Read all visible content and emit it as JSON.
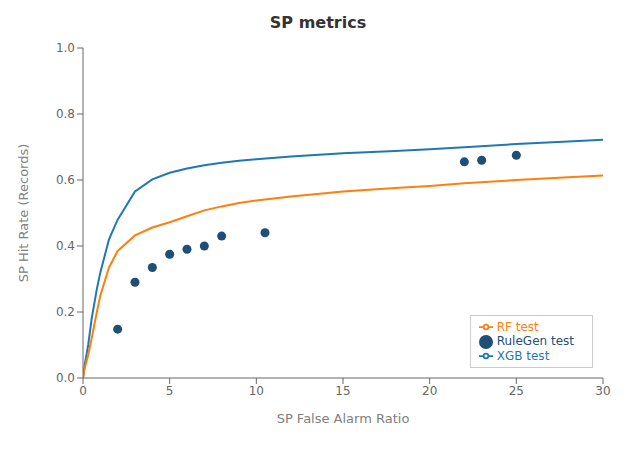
{
  "chart_data": {
    "type": "line",
    "title": "SP metrics",
    "xlabel": "SP False Alarm Ratio",
    "ylabel": "SP Hit Rate (Records)",
    "xlim": [
      0,
      30
    ],
    "ylim": [
      0.0,
      1.0
    ],
    "xticks": [
      0,
      5,
      10,
      15,
      20,
      25,
      30
    ],
    "yticks": [
      {
        "value": 0.0,
        "label": "0.0"
      },
      0.2,
      0.4,
      0.6,
      0.8,
      {
        "value": 1.0,
        "label": "1.0"
      }
    ],
    "grid": false,
    "legend": "lower right",
    "series": [
      {
        "name": "XGB test",
        "type": "line",
        "color": "#1f77b4",
        "x": [
          0,
          0.1,
          0.3,
          0.5,
          0.8,
          1.0,
          1.5,
          2.0,
          3.0,
          4.0,
          5.0,
          6.0,
          7.0,
          8.0,
          9.0,
          10.0,
          12.0,
          15.0,
          18.0,
          20.0,
          22.0,
          25.0,
          28.0,
          30.0
        ],
        "values": [
          0.0,
          0.04,
          0.1,
          0.18,
          0.27,
          0.32,
          0.42,
          0.48,
          0.565,
          0.602,
          0.622,
          0.635,
          0.645,
          0.652,
          0.658,
          0.663,
          0.671,
          0.681,
          0.688,
          0.693,
          0.699,
          0.709,
          0.717,
          0.722
        ]
      },
      {
        "name": "RF test",
        "type": "line",
        "color": "#ff7f0e",
        "x": [
          0,
          0.1,
          0.3,
          0.5,
          0.8,
          1.0,
          1.5,
          2.0,
          3.0,
          4.0,
          5.0,
          6.0,
          7.0,
          8.0,
          9.0,
          10.0,
          12.0,
          15.0,
          18.0,
          20.0,
          22.0,
          25.0,
          28.0,
          30.0
        ],
        "values": [
          0.0,
          0.03,
          0.07,
          0.12,
          0.2,
          0.25,
          0.335,
          0.385,
          0.432,
          0.456,
          0.472,
          0.49,
          0.508,
          0.52,
          0.53,
          0.538,
          0.55,
          0.565,
          0.576,
          0.582,
          0.59,
          0.6,
          0.608,
          0.614
        ]
      },
      {
        "name": "RuleGen test",
        "type": "scatter",
        "color": "#1f4e79",
        "marker": "circle",
        "x": [
          2.0,
          3.0,
          4.0,
          5.0,
          6.0,
          7.0,
          8.0,
          10.5,
          22.0,
          23.0,
          25.0
        ],
        "values": [
          0.148,
          0.29,
          0.335,
          0.375,
          0.39,
          0.4,
          0.43,
          0.44,
          0.655,
          0.66,
          0.675
        ]
      }
    ]
  }
}
